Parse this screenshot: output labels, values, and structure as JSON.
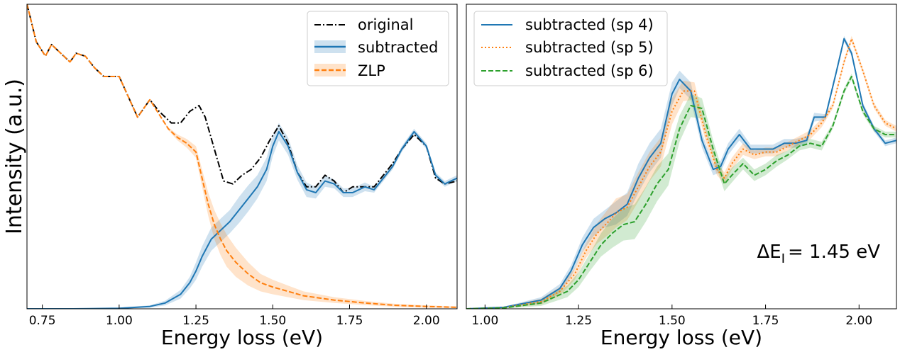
{
  "chart_data": [
    {
      "type": "line",
      "xlabel": "Energy loss (eV)",
      "ylabel": "Intensity (a.u.)",
      "xlim": [
        0.7,
        2.1
      ],
      "ylim": [
        0,
        1.0
      ],
      "xticks": [
        "0.75",
        "1.00",
        "1.25",
        "1.50",
        "1.75",
        "2.00"
      ],
      "yticks_shown": false,
      "legend_position": "top-right",
      "series": [
        {
          "name": "original",
          "style": "dashdot",
          "color": "#000000",
          "x": [
            0.7,
            0.73,
            0.76,
            0.78,
            0.81,
            0.84,
            0.86,
            0.89,
            0.92,
            0.95,
            0.97,
            1.0,
            1.03,
            1.06,
            1.1,
            1.13,
            1.17,
            1.2,
            1.23,
            1.26,
            1.28,
            1.31,
            1.34,
            1.37,
            1.4,
            1.43,
            1.46,
            1.49,
            1.52,
            1.55,
            1.58,
            1.61,
            1.64,
            1.67,
            1.7,
            1.73,
            1.76,
            1.8,
            1.83,
            1.86,
            1.89,
            1.92,
            1.96,
            2.0,
            2.03,
            2.06,
            2.1
          ],
          "y": [
            1.05,
            0.92,
            0.87,
            0.91,
            0.88,
            0.85,
            0.88,
            0.87,
            0.83,
            0.8,
            0.8,
            0.8,
            0.73,
            0.66,
            0.72,
            0.68,
            0.64,
            0.64,
            0.68,
            0.7,
            0.66,
            0.55,
            0.44,
            0.43,
            0.46,
            0.48,
            0.52,
            0.58,
            0.63,
            0.57,
            0.47,
            0.42,
            0.42,
            0.46,
            0.44,
            0.4,
            0.42,
            0.42,
            0.42,
            0.46,
            0.5,
            0.55,
            0.6,
            0.56,
            0.45,
            0.43,
            0.44
          ]
        },
        {
          "name": "subtracted",
          "style": "solid",
          "color": "#1f77b4",
          "x": [
            0.7,
            0.85,
            1.0,
            1.1,
            1.15,
            1.2,
            1.23,
            1.25,
            1.27,
            1.3,
            1.33,
            1.36,
            1.39,
            1.42,
            1.45,
            1.48,
            1.5,
            1.52,
            1.55,
            1.58,
            1.61,
            1.64,
            1.67,
            1.7,
            1.73,
            1.76,
            1.8,
            1.83,
            1.86,
            1.89,
            1.92,
            1.96,
            2.0,
            2.03,
            2.06,
            2.1
          ],
          "y": [
            0,
            0,
            0.002,
            0.008,
            0.02,
            0.05,
            0.09,
            0.13,
            0.18,
            0.24,
            0.27,
            0.3,
            0.34,
            0.38,
            0.42,
            0.48,
            0.56,
            0.61,
            0.56,
            0.47,
            0.41,
            0.4,
            0.44,
            0.43,
            0.4,
            0.4,
            0.42,
            0.41,
            0.45,
            0.49,
            0.55,
            0.61,
            0.56,
            0.46,
            0.43,
            0.45
          ],
          "band": [
            0,
            0,
            0.002,
            0.004,
            0.008,
            0.015,
            0.02,
            0.03,
            0.035,
            0.04,
            0.04,
            0.04,
            0.045,
            0.045,
            0.04,
            0.04,
            0.035,
            0.03,
            0.03,
            0.025,
            0.025,
            0.02,
            0.02,
            0.015,
            0.015,
            0.015,
            0.015,
            0.01,
            0.01,
            0.01,
            0.01,
            0.01,
            0.01,
            0.01,
            0.01,
            0.01
          ]
        },
        {
          "name": "ZLP",
          "style": "dashed",
          "color": "#ff7f0e",
          "x": [
            0.7,
            0.73,
            0.76,
            0.78,
            0.81,
            0.84,
            0.86,
            0.89,
            0.92,
            0.95,
            0.97,
            1.0,
            1.03,
            1.06,
            1.1,
            1.13,
            1.16,
            1.19,
            1.22,
            1.25,
            1.27,
            1.29,
            1.31,
            1.33,
            1.35,
            1.38,
            1.42,
            1.46,
            1.5,
            1.55,
            1.6,
            1.7,
            1.8,
            1.9,
            2.0,
            2.1
          ],
          "y": [
            1.05,
            0.92,
            0.87,
            0.91,
            0.88,
            0.85,
            0.88,
            0.87,
            0.83,
            0.8,
            0.8,
            0.8,
            0.73,
            0.66,
            0.72,
            0.67,
            0.62,
            0.59,
            0.57,
            0.54,
            0.45,
            0.36,
            0.29,
            0.24,
            0.2,
            0.16,
            0.12,
            0.09,
            0.075,
            0.06,
            0.045,
            0.03,
            0.02,
            0.012,
            0.008,
            0.005
          ],
          "band": [
            0,
            0,
            0,
            0,
            0,
            0,
            0,
            0,
            0,
            0,
            0,
            0,
            0,
            0,
            0,
            0,
            0.005,
            0.01,
            0.015,
            0.02,
            0.03,
            0.04,
            0.05,
            0.055,
            0.055,
            0.05,
            0.04,
            0.03,
            0.025,
            0.02,
            0.015,
            0.01,
            0.007,
            0.005,
            0.004,
            0.003
          ]
        }
      ]
    },
    {
      "type": "line",
      "xlabel": "Energy loss (eV)",
      "xlim": [
        0.95,
        2.1
      ],
      "ylim": [
        0,
        1.0
      ],
      "xticks": [
        "1.00",
        "1.25",
        "1.50",
        "1.75",
        "2.00"
      ],
      "yticks_shown": false,
      "legend_position": "top-left",
      "annotation": "ΔE",
      "annotation_sub": "I",
      "annotation_value": "= 1.45 eV",
      "series": [
        {
          "name": "subtracted (sp 4)",
          "style": "solid",
          "color": "#1f77b4",
          "x": [
            0.95,
            1.05,
            1.15,
            1.2,
            1.23,
            1.26,
            1.29,
            1.32,
            1.35,
            1.38,
            1.41,
            1.44,
            1.47,
            1.5,
            1.52,
            1.55,
            1.58,
            1.61,
            1.63,
            1.65,
            1.68,
            1.71,
            1.74,
            1.77,
            1.8,
            1.83,
            1.86,
            1.88,
            1.91,
            1.94,
            1.96,
            1.98,
            2.01,
            2.04,
            2.07,
            2.1
          ],
          "y": [
            0,
            0.005,
            0.03,
            0.07,
            0.13,
            0.22,
            0.28,
            0.31,
            0.33,
            0.36,
            0.45,
            0.52,
            0.57,
            0.74,
            0.79,
            0.75,
            0.58,
            0.48,
            0.49,
            0.55,
            0.6,
            0.55,
            0.55,
            0.55,
            0.57,
            0.57,
            0.58,
            0.66,
            0.66,
            0.82,
            0.93,
            0.88,
            0.7,
            0.62,
            0.57,
            0.58
          ],
          "band": [
            0,
            0.002,
            0.01,
            0.015,
            0.02,
            0.025,
            0.03,
            0.03,
            0.04,
            0.04,
            0.05,
            0.05,
            0.05,
            0.04,
            0.03,
            0.03,
            0.025,
            0.02,
            0.02,
            0.02,
            0.02,
            0.015,
            0.015,
            0.015,
            0.015,
            0.015,
            0.015,
            0.015,
            0.01,
            0.01,
            0.01,
            0.01,
            0.01,
            0.01,
            0.01,
            0.01
          ]
        },
        {
          "name": "subtracted (sp 5)",
          "style": "dotted",
          "color": "#ff7f0e",
          "x": [
            0.95,
            1.05,
            1.15,
            1.2,
            1.24,
            1.27,
            1.3,
            1.33,
            1.35,
            1.38,
            1.41,
            1.44,
            1.47,
            1.5,
            1.53,
            1.56,
            1.59,
            1.62,
            1.64,
            1.66,
            1.69,
            1.72,
            1.75,
            1.78,
            1.81,
            1.84,
            1.87,
            1.9,
            1.93,
            1.96,
            1.98,
            2.01,
            2.04,
            2.07,
            2.1
          ],
          "y": [
            0,
            0.004,
            0.025,
            0.06,
            0.12,
            0.2,
            0.26,
            0.3,
            0.33,
            0.35,
            0.42,
            0.49,
            0.54,
            0.68,
            0.75,
            0.75,
            0.6,
            0.48,
            0.45,
            0.5,
            0.55,
            0.53,
            0.54,
            0.54,
            0.56,
            0.58,
            0.6,
            0.64,
            0.7,
            0.85,
            0.93,
            0.82,
            0.7,
            0.64,
            0.62
          ],
          "band": [
            0,
            0.002,
            0.01,
            0.015,
            0.02,
            0.025,
            0.035,
            0.045,
            0.05,
            0.045,
            0.05,
            0.05,
            0.05,
            0.045,
            0.035,
            0.03,
            0.025,
            0.02,
            0.02,
            0.02,
            0.02,
            0.015,
            0.015,
            0.015,
            0.015,
            0.015,
            0.015,
            0.015,
            0.01,
            0.01,
            0.01,
            0.01,
            0.01,
            0.01,
            0.01
          ]
        },
        {
          "name": "subtracted (sp 6)",
          "style": "dashed",
          "color": "#2ca02c",
          "x": [
            0.95,
            1.05,
            1.15,
            1.22,
            1.25,
            1.28,
            1.31,
            1.34,
            1.37,
            1.4,
            1.43,
            1.46,
            1.49,
            1.52,
            1.55,
            1.58,
            1.61,
            1.64,
            1.66,
            1.69,
            1.72,
            1.75,
            1.78,
            1.81,
            1.84,
            1.87,
            1.9,
            1.93,
            1.96,
            1.98,
            2.01,
            2.04,
            2.07,
            2.1
          ],
          "y": [
            0,
            0.003,
            0.02,
            0.06,
            0.1,
            0.16,
            0.22,
            0.26,
            0.29,
            0.3,
            0.36,
            0.43,
            0.48,
            0.62,
            0.7,
            0.69,
            0.55,
            0.43,
            0.46,
            0.5,
            0.46,
            0.48,
            0.51,
            0.53,
            0.56,
            0.57,
            0.56,
            0.63,
            0.75,
            0.8,
            0.68,
            0.62,
            0.6,
            0.6
          ],
          "band": [
            0,
            0.002,
            0.01,
            0.02,
            0.025,
            0.03,
            0.04,
            0.05,
            0.055,
            0.06,
            0.06,
            0.06,
            0.055,
            0.045,
            0.04,
            0.035,
            0.03,
            0.025,
            0.025,
            0.02,
            0.02,
            0.02,
            0.02,
            0.015,
            0.015,
            0.015,
            0.015,
            0.01,
            0.01,
            0.01,
            0.01,
            0.01,
            0.01,
            0.01
          ]
        }
      ]
    }
  ]
}
